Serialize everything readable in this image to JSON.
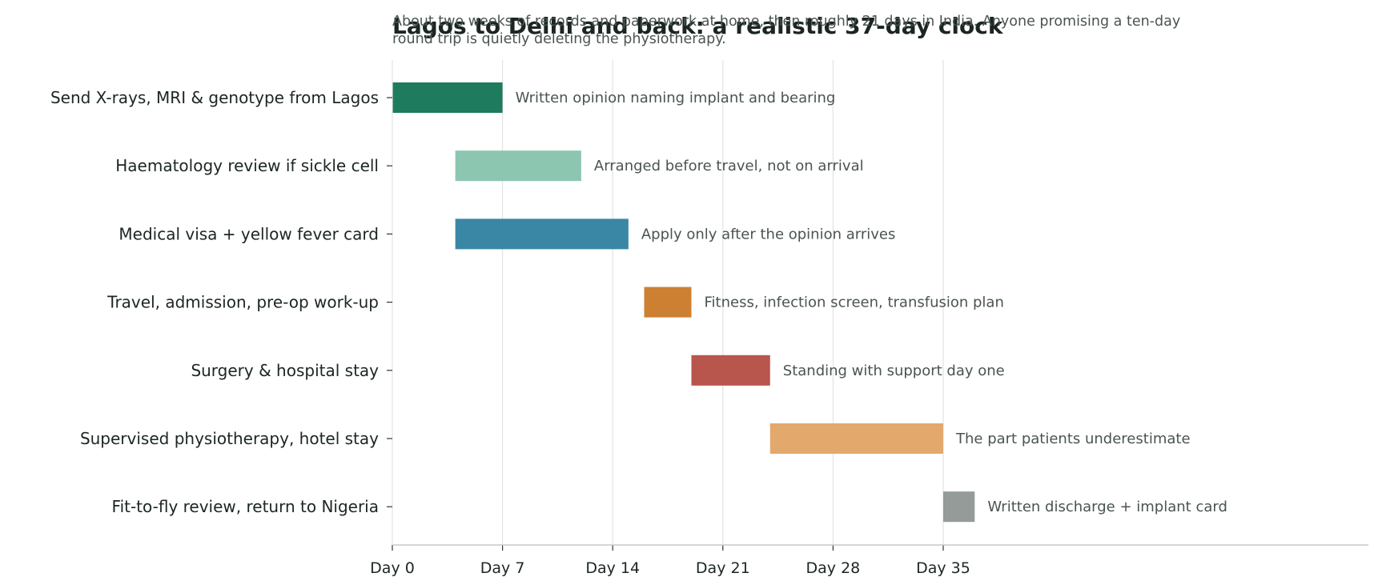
{
  "chart_data": {
    "type": "bar",
    "orientation": "horizontal-gantt",
    "title": "Lagos to Delhi and back: a realistic 37-day clock",
    "subtitle_lines": [
      "About two weeks of records and paperwork at home, then roughly 21 days in India. Anyone promising a ten-day",
      "round trip is quietly deleting the physiotherapy."
    ],
    "xlabel": "",
    "ylabel": "",
    "xlim": [
      0,
      62
    ],
    "xticks": [
      0,
      7,
      14,
      21,
      28,
      35
    ],
    "xtick_labels": [
      "Day 0",
      "Day 7",
      "Day 14",
      "Day 21",
      "Day 28",
      "Day 35"
    ],
    "grid": "vertical",
    "tasks": [
      {
        "label": "Send X-rays, MRI & genotype from Lagos",
        "start": 0,
        "end": 7,
        "note": "Written opinion naming implant and bearing",
        "color": "#1e7b5e"
      },
      {
        "label": "Haematology review if sickle cell",
        "start": 4,
        "end": 12,
        "note": "Arranged before travel, not on arrival",
        "color": "#8cc6b1"
      },
      {
        "label": "Medical visa + yellow fever card",
        "start": 4,
        "end": 15,
        "note": "Apply only after the opinion arrives",
        "color": "#3a87a5"
      },
      {
        "label": "Travel, admission, pre-op work-up",
        "start": 16,
        "end": 19,
        "note": "Fitness, infection screen, transfusion plan",
        "color": "#cd7f32"
      },
      {
        "label": "Surgery & hospital stay",
        "start": 19,
        "end": 24,
        "note": "Standing with support day one",
        "color": "#b8554d"
      },
      {
        "label": "Supervised physiotherapy, hotel stay",
        "start": 24,
        "end": 35,
        "note": "The part patients underestimate",
        "color": "#e3a96c"
      },
      {
        "label": "Fit-to-fly review, return to Nigeria",
        "start": 35,
        "end": 37,
        "note": "Written discharge + implant card",
        "color": "#949b98"
      }
    ]
  }
}
